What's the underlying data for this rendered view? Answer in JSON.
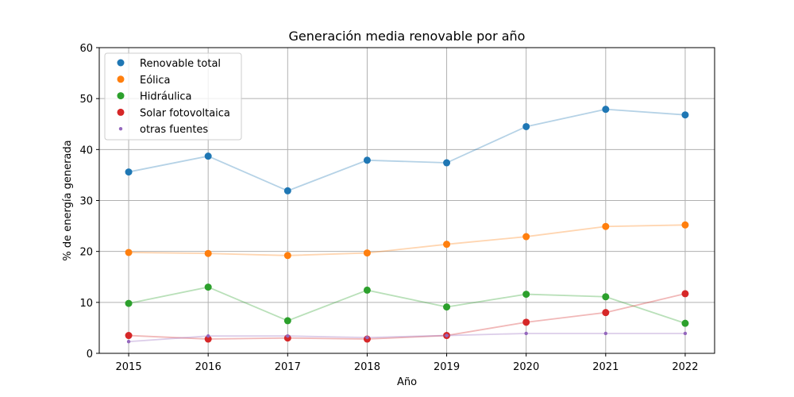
{
  "chart_data": {
    "type": "line",
    "title": "Generación media renovable por año",
    "xlabel": "Año",
    "ylabel": "% de energía generada",
    "x": [
      2015,
      2016,
      2017,
      2018,
      2019,
      2020,
      2021,
      2022
    ],
    "xlim": [
      2014.63,
      2022.37
    ],
    "ylim": [
      0,
      60
    ],
    "yticks": [
      0,
      10,
      20,
      30,
      40,
      50,
      60
    ],
    "grid": true,
    "legend_position": "top-left",
    "series": [
      {
        "name": "Renovable total",
        "color": "#1f77b4",
        "marker": "large",
        "values": [
          35.6,
          38.7,
          31.9,
          37.9,
          37.4,
          44.5,
          47.9,
          46.8
        ]
      },
      {
        "name": "Eólica",
        "color": "#ff7f0e",
        "marker": "large",
        "values": [
          19.8,
          19.6,
          19.2,
          19.7,
          21.4,
          22.9,
          24.9,
          25.2
        ]
      },
      {
        "name": "Hidráulica",
        "color": "#2ca02c",
        "marker": "large",
        "values": [
          9.8,
          13.0,
          6.4,
          12.4,
          9.1,
          11.6,
          11.1,
          5.9
        ]
      },
      {
        "name": "Solar fotovoltaica",
        "color": "#d62728",
        "marker": "large",
        "values": [
          3.5,
          2.8,
          3.0,
          2.8,
          3.5,
          6.1,
          8.0,
          11.7
        ]
      },
      {
        "name": "otras fuentes",
        "color": "#9467bd",
        "marker": "small",
        "values": [
          2.3,
          3.4,
          3.4,
          3.1,
          3.5,
          3.9,
          3.9,
          3.9
        ]
      }
    ]
  }
}
